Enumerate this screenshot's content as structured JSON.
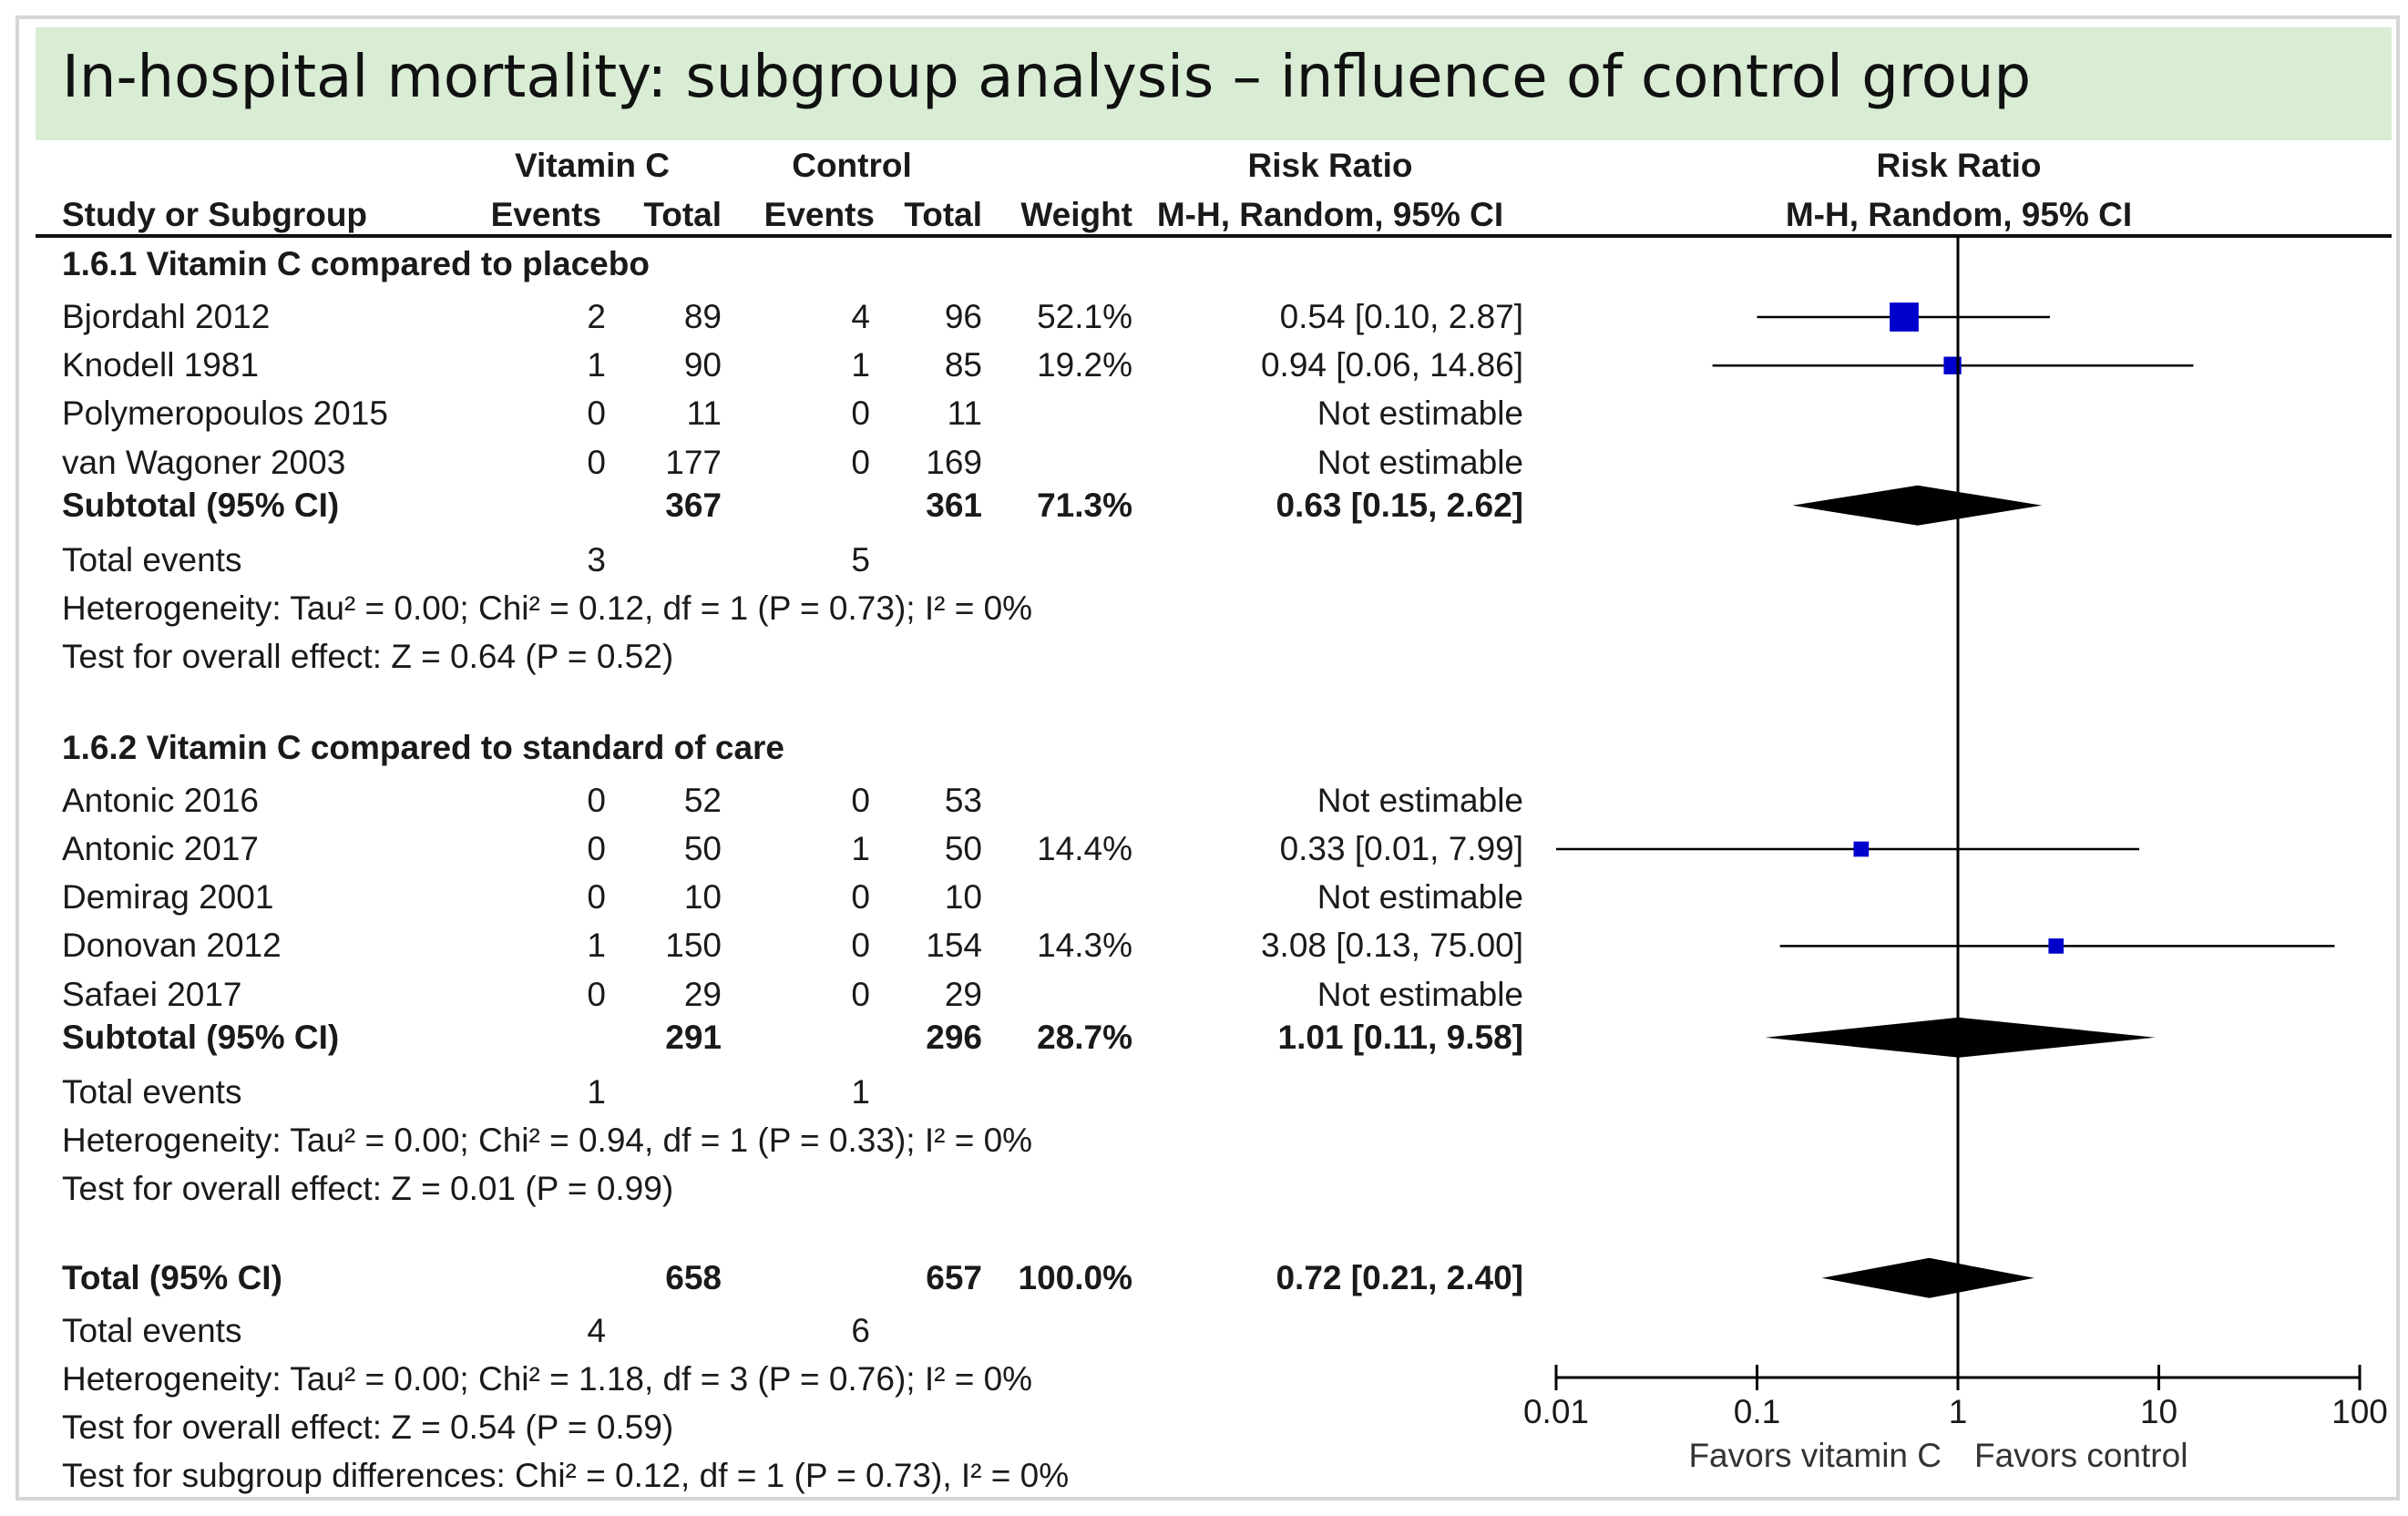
{
  "title": "In-hospital mortality: subgroup analysis – influence of control group",
  "headers": {
    "group1": "Vitamin C",
    "group2": "Control",
    "rr_table": "Risk Ratio",
    "rr_method": "M-H, Random, 95% CI",
    "rr_plot": "Risk Ratio",
    "rr_plot_method": "M-H, Random, 95% CI",
    "study": "Study or Subgroup",
    "events1": "Events",
    "total1": "Total",
    "events2": "Events",
    "total2": "Total",
    "weight": "Weight"
  },
  "chart_data": {
    "type": "forest",
    "scale": "log",
    "x_ticks": [
      "0.01",
      "0.1",
      "1",
      "10",
      "100"
    ],
    "xlim": [
      0.01,
      100
    ],
    "null_value": 1,
    "favors_left": "Favors vitamin C",
    "favors_right": "Favors control",
    "subgroups": [
      {
        "label": "1.6.1 Vitamin C compared to placebo",
        "studies": [
          {
            "name": "Bjordahl 2012",
            "e1": "2",
            "t1": "89",
            "e2": "4",
            "t2": "96",
            "weight": "52.1%",
            "ci_text": "0.54 [0.10, 2.87]",
            "rr": 0.54,
            "lo": 0.1,
            "hi": 2.87,
            "w": 52.1
          },
          {
            "name": "Knodell 1981",
            "e1": "1",
            "t1": "90",
            "e2": "1",
            "t2": "85",
            "weight": "19.2%",
            "ci_text": "0.94 [0.06, 14.86]",
            "rr": 0.94,
            "lo": 0.06,
            "hi": 14.86,
            "w": 19.2
          },
          {
            "name": "Polymeropoulos 2015",
            "e1": "0",
            "t1": "11",
            "e2": "0",
            "t2": "11",
            "weight": "",
            "ci_text": "Not estimable"
          },
          {
            "name": "van Wagoner 2003",
            "e1": "0",
            "t1": "177",
            "e2": "0",
            "t2": "169",
            "weight": "",
            "ci_text": "Not estimable"
          }
        ],
        "subtotal": {
          "label": "Subtotal (95% CI)",
          "t1": "367",
          "t2": "361",
          "weight": "71.3%",
          "ci_text": "0.63 [0.15, 2.62]",
          "rr": 0.63,
          "lo": 0.15,
          "hi": 2.62
        },
        "total_events": {
          "label": "Total events",
          "e1": "3",
          "e2": "5"
        },
        "heterogeneity": "Heterogeneity: Tau² = 0.00; Chi² = 0.12, df = 1 (P = 0.73); I² = 0%",
        "overall": "Test for overall effect: Z = 0.64 (P = 0.52)"
      },
      {
        "label": "1.6.2 Vitamin C compared to standard of care",
        "studies": [
          {
            "name": "Antonic 2016",
            "e1": "0",
            "t1": "52",
            "e2": "0",
            "t2": "53",
            "weight": "",
            "ci_text": "Not estimable"
          },
          {
            "name": "Antonic 2017",
            "e1": "0",
            "t1": "50",
            "e2": "1",
            "t2": "50",
            "weight": "14.4%",
            "ci_text": "0.33 [0.01, 7.99]",
            "rr": 0.33,
            "lo": 0.01,
            "hi": 7.99,
            "w": 14.4
          },
          {
            "name": "Demirag 2001",
            "e1": "0",
            "t1": "10",
            "e2": "0",
            "t2": "10",
            "weight": "",
            "ci_text": "Not estimable"
          },
          {
            "name": "Donovan 2012",
            "e1": "1",
            "t1": "150",
            "e2": "0",
            "t2": "154",
            "weight": "14.3%",
            "ci_text": "3.08 [0.13, 75.00]",
            "rr": 3.08,
            "lo": 0.13,
            "hi": 75.0,
            "w": 14.3
          },
          {
            "name": "Safaei 2017",
            "e1": "0",
            "t1": "29",
            "e2": "0",
            "t2": "29",
            "weight": "",
            "ci_text": "Not estimable"
          }
        ],
        "subtotal": {
          "label": "Subtotal (95% CI)",
          "t1": "291",
          "t2": "296",
          "weight": "28.7%",
          "ci_text": "1.01 [0.11, 9.58]",
          "rr": 1.01,
          "lo": 0.11,
          "hi": 9.58
        },
        "total_events": {
          "label": "Total events",
          "e1": "1",
          "e2": "1"
        },
        "heterogeneity": "Heterogeneity: Tau² = 0.00; Chi² = 0.94, df = 1 (P = 0.33); I² = 0%",
        "overall": "Test for overall effect: Z = 0.01 (P = 0.99)"
      }
    ],
    "total": {
      "label": "Total (95% CI)",
      "t1": "658",
      "t2": "657",
      "weight": "100.0%",
      "ci_text": "0.72 [0.21, 2.40]",
      "rr": 0.72,
      "lo": 0.21,
      "hi": 2.4
    },
    "total_events": {
      "label": "Total events",
      "e1": "4",
      "e2": "6"
    },
    "heterogeneity": "Heterogeneity: Tau² = 0.00; Chi² = 1.18, df = 3 (P = 0.76); I² = 0%",
    "overall": "Test for overall effect: Z = 0.54 (P = 0.59)",
    "subgroup_diff": "Test for subgroup differences: Chi² = 0.12, df = 1 (P = 0.73), I² = 0%"
  },
  "colors": {
    "title_bg": "#d9edd5",
    "square": "#0000cc",
    "diamond": "#000000"
  }
}
